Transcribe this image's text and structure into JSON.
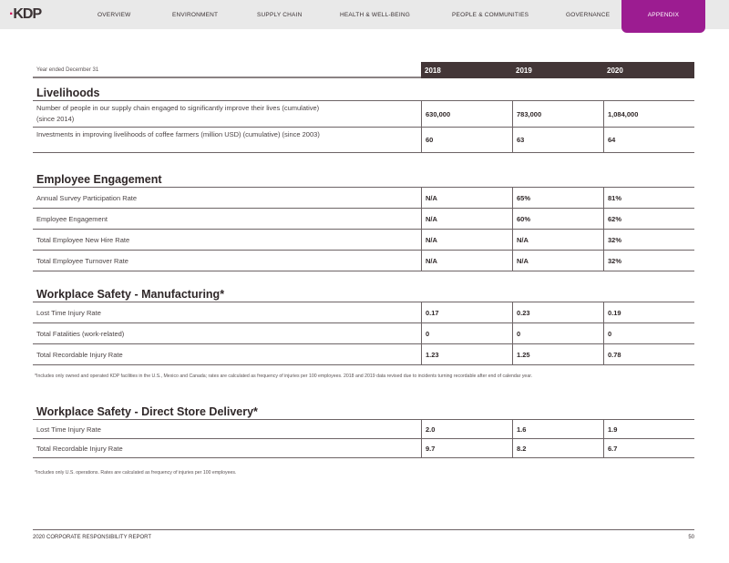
{
  "nav": {
    "logo": "KDP",
    "items": [
      "OVERVIEW",
      "ENVIRONMENT",
      "SUPPLY CHAIN",
      "HEALTH & WELL-BEING",
      "PEOPLE & COMMUNITIES",
      "GOVERNANCE",
      "APPENDIX"
    ],
    "active": "APPENDIX",
    "accent": "#9c1c91"
  },
  "header": {
    "label": "Year ended December 31",
    "years": [
      "2018",
      "2019",
      "2020"
    ]
  },
  "sections": [
    {
      "title": "Livelihoods",
      "rows": [
        {
          "label": "Number of people in our supply chain engaged to significantly improve their lives (cumulative) (since 2014)",
          "values": [
            "630,000",
            "783,000",
            "1,084,000"
          ]
        },
        {
          "label": "Investments in improving livelihoods of coffee farmers (million USD) (cumulative) (since 2003)",
          "values": [
            "60",
            "63",
            "64"
          ]
        }
      ]
    },
    {
      "title": "Employee Engagement",
      "rows": [
        {
          "label": "Annual Survey Participation Rate",
          "values": [
            "N/A",
            "65%",
            "81%"
          ]
        },
        {
          "label": "Employee Engagement",
          "values": [
            "N/A",
            "60%",
            "62%"
          ]
        },
        {
          "label": "Total Employee New Hire Rate",
          "values": [
            "N/A",
            "N/A",
            "32%"
          ]
        },
        {
          "label": "Total Employee Turnover Rate",
          "values": [
            "N/A",
            "N/A",
            "32%"
          ]
        }
      ]
    },
    {
      "title": "Workplace Safety - Manufacturing*",
      "rows": [
        {
          "label": "Lost Time Injury Rate",
          "values": [
            "0.17",
            "0.23",
            "0.19"
          ]
        },
        {
          "label": "Total Fatalities (work-related)",
          "values": [
            "0",
            "0",
            "0"
          ]
        },
        {
          "label": "Total Recordable Injury Rate",
          "values": [
            "1.23",
            "1.25",
            "0.78"
          ]
        }
      ],
      "footnote": "*Includes only owned and operated KDP facilities in the U.S., Mexico and Canada; rates are calculated as frequency of injuries per 100 employees. 2018 and 2019 data revised due to incidents turning recordable after end of calendar year."
    },
    {
      "title": "Workplace Safety - Direct Store Delivery*",
      "rows": [
        {
          "label": "Lost Time Injury Rate",
          "values": [
            "2.0",
            "1.6",
            "1.9"
          ]
        },
        {
          "label": "Total Recordable Injury Rate",
          "values": [
            "9.7",
            "8.2",
            "6.7"
          ]
        }
      ],
      "footnote": "*Includes only U.S. operations. Rates are calculated as frequency of injuries per 100 employees."
    }
  ],
  "footer": {
    "report": "2020 CORPORATE RESPONSIBILITY REPORT",
    "page": "50"
  }
}
